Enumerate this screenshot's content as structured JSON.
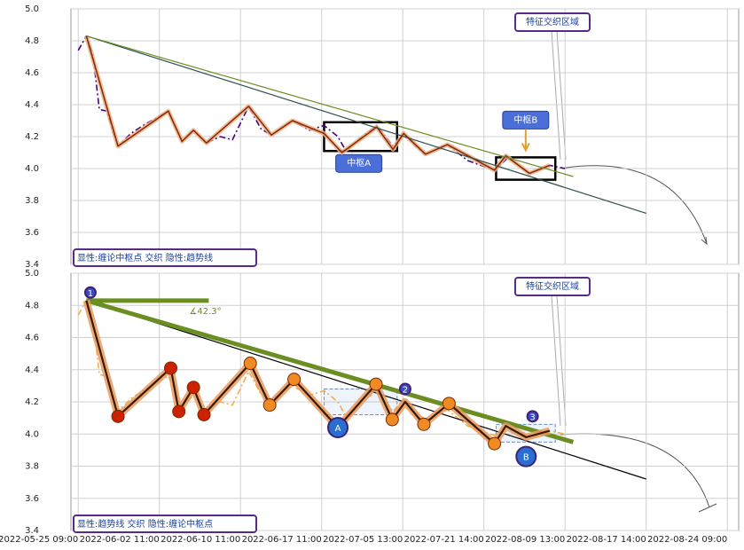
{
  "chart_data": [
    {
      "type": "line",
      "ylim": [
        3.4,
        5.0
      ],
      "yticks": [
        3.4,
        3.6,
        3.8,
        {
          "value": 4,
          "label": "4.0"
        },
        4.2,
        4.4,
        4.6,
        4.8,
        {
          "value": 5,
          "label": "5.0"
        }
      ],
      "grid": true,
      "caption": "显性:缠论中枢点 交织 隐性:趋势线",
      "region_label": "特征交织区域",
      "series": [
        {
          "color": "#4b0082",
          "style": "dashdot",
          "x": [
            0,
            0.1,
            0.18,
            0.26,
            0.35,
            0.49,
            0.65,
            0.8,
            1.11,
            1.2,
            1.28,
            1.42,
            1.58,
            1.75,
            1.9,
            2.1,
            2.25,
            2.38,
            2.64,
            2.85,
            3.03,
            3.2,
            3.3,
            3.5,
            3.68,
            3.88,
            4.01,
            4.2,
            4.28,
            4.55,
            4.8,
            5.13,
            5.3,
            5.56,
            5.81,
            6.0
          ],
          "values": [
            4.74,
            4.83,
            4.72,
            4.37,
            4.36,
            4.14,
            4.22,
            4.27,
            4.36,
            4.26,
            4.17,
            4.24,
            4.16,
            4.2,
            4.18,
            4.39,
            4.25,
            4.21,
            4.3,
            4.24,
            4.27,
            4.2,
            4.11,
            4.2,
            4.27,
            4.14,
            4.22,
            4.12,
            4.09,
            4.15,
            4.05,
            3.99,
            4.07,
            3.97,
            4.02,
            4.0
          ]
        },
        {
          "color": "#8b2500",
          "style": "halo",
          "x": [
            0.1,
            0.49,
            1.11,
            1.28,
            1.42,
            1.58,
            2.1,
            2.38,
            2.64,
            3.03,
            3.25,
            3.68,
            3.88,
            4.01,
            4.28,
            4.55,
            5.13,
            5.27,
            5.56,
            5.81
          ],
          "values": [
            4.83,
            4.14,
            4.36,
            4.17,
            4.24,
            4.16,
            4.39,
            4.21,
            4.3,
            4.22,
            4.1,
            4.26,
            4.12,
            4.22,
            4.09,
            4.15,
            3.99,
            4.08,
            3.97,
            4.02
          ]
        },
        {
          "color": "#2f4f4f",
          "style": "solid",
          "x": [
            0.1,
            7.0
          ],
          "values": [
            4.83,
            3.72
          ]
        },
        {
          "color": "#6b8e23",
          "style": "solid",
          "x": [
            0.1,
            6.1
          ],
          "values": [
            4.83,
            3.95
          ]
        }
      ],
      "boxes": [
        {
          "label": "中枢A",
          "x": [
            3.03,
            3.93
          ],
          "y": [
            4.11,
            4.29
          ]
        },
        {
          "label": "中枢B",
          "x": [
            5.15,
            5.88
          ],
          "y": [
            3.93,
            4.07
          ]
        }
      ]
    },
    {
      "type": "line",
      "xlim": [
        -0.09,
        8.14
      ],
      "xticks": [
        {
          "value": 0,
          "label": "2022-05-25 09:00"
        },
        {
          "value": 1,
          "label": "2022-06-02 11:00"
        },
        {
          "value": 2,
          "label": "2022-06-10 11:00"
        },
        {
          "value": 3,
          "label": "2022-06-17 11:00"
        },
        {
          "value": 4,
          "label": "2022-07-05 13:00"
        },
        {
          "value": 5,
          "label": "2022-07-21 14:00"
        },
        {
          "value": 6,
          "label": "2022-08-09 13:00"
        },
        {
          "value": 7,
          "label": "2022-08-17 14:00"
        },
        {
          "value": 8,
          "label": "2022-08-24 09:00"
        }
      ],
      "ylim": [
        3.4,
        5.0
      ],
      "yticks": [
        3.4,
        3.6,
        3.8,
        {
          "value": 4,
          "label": "4.0"
        },
        4.2,
        4.4,
        4.6,
        4.8,
        {
          "value": 5,
          "label": "5.0"
        }
      ],
      "grid": true,
      "caption": "显性:趋势线 交织 隐性:缠论中枢点",
      "region_label": "特征交织区域",
      "angle_label": "∡42.3°",
      "series": [
        {
          "color": "#f0b050",
          "style": "dashdot",
          "x": [
            0,
            0.1,
            0.18,
            0.26,
            0.35,
            0.49,
            0.65,
            0.8,
            1.11,
            1.2,
            1.28,
            1.42,
            1.58,
            1.75,
            1.9,
            2.1,
            2.25,
            2.38,
            2.64,
            2.85,
            3.03,
            3.2,
            3.3,
            3.5,
            3.68,
            3.88,
            4.01,
            4.2,
            4.28,
            4.55,
            4.8,
            5.13,
            5.3,
            5.56,
            5.81,
            6.0
          ],
          "values": [
            4.74,
            4.83,
            4.72,
            4.37,
            4.36,
            4.14,
            4.22,
            4.27,
            4.36,
            4.26,
            4.17,
            4.24,
            4.16,
            4.2,
            4.18,
            4.39,
            4.25,
            4.21,
            4.3,
            4.24,
            4.27,
            4.2,
            4.11,
            4.2,
            4.27,
            4.14,
            4.22,
            4.12,
            4.09,
            4.15,
            4.05,
            3.99,
            4.07,
            3.97,
            4.02,
            4.0
          ]
        },
        {
          "color": "#000000",
          "style": "solid",
          "x": [
            0.1,
            7.0
          ],
          "values": [
            4.83,
            3.72
          ]
        },
        {
          "color": "#6b8e23",
          "style": "thick",
          "x": [
            0.1,
            6.1
          ],
          "values": [
            4.83,
            3.95
          ]
        },
        {
          "color": "#3a1a00",
          "style": "halo",
          "x": [
            0.1,
            0.49,
            1.14,
            1.24,
            1.42,
            1.55,
            2.12,
            2.36,
            2.66,
            3.2,
            3.67,
            3.87,
            4.03,
            4.26,
            4.57,
            5.13,
            5.27,
            5.52,
            5.81
          ],
          "values": [
            4.83,
            4.11,
            4.41,
            4.14,
            4.29,
            4.12,
            4.44,
            4.18,
            4.34,
            4.04,
            4.31,
            4.09,
            4.2,
            4.06,
            4.19,
            3.94,
            4.05,
            3.98,
            4.02
          ],
          "marker_colors": [
            null,
            "#cc2200",
            "#cc2200",
            "#cc2200",
            "#cc2200",
            "#cc2200",
            "#f08a24",
            "#f08a24",
            "#f08a24",
            null,
            "#f08a24",
            "#f08a24",
            null,
            "#f08a24",
            "#f08a24",
            "#f08a24",
            null,
            null,
            null
          ]
        }
      ],
      "markers": [
        {
          "label": "1",
          "x": 0.15,
          "value": 4.88,
          "color": "#3b4cc0"
        },
        {
          "label": "2",
          "x": 4.03,
          "value": 4.28,
          "color": "#3b4cc0"
        },
        {
          "label": "3",
          "x": 5.6,
          "value": 4.11,
          "color": "#3b4cc0"
        },
        {
          "label": "A",
          "x": 3.2,
          "value": 4.04,
          "color": "#2a6fcf"
        },
        {
          "label": "B",
          "x": 5.52,
          "value": 3.86,
          "color": "#2a6fcf"
        }
      ],
      "boxes": [
        {
          "x": [
            3.03,
            3.93
          ],
          "y": [
            4.12,
            4.28
          ]
        },
        {
          "x": [
            5.15,
            5.88
          ],
          "y": [
            3.95,
            4.06
          ]
        }
      ]
    }
  ]
}
